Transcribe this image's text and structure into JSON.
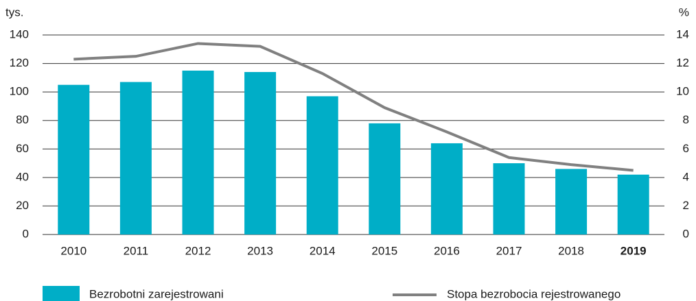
{
  "chart_data": {
    "type": "bar_line",
    "y_unit": "tys.",
    "y2_unit": "%",
    "categories": [
      "2010",
      "2011",
      "2012",
      "2013",
      "2014",
      "2015",
      "2016",
      "2017",
      "2018",
      "2019"
    ],
    "highlight_index": 9,
    "series": [
      {
        "name": "Bezrobotni zarejestrowani",
        "type": "bar",
        "color": "#00aec7",
        "values": [
          105,
          107,
          115,
          114,
          97,
          78,
          64,
          50,
          46,
          42
        ]
      },
      {
        "name": "Stopa bezrobocia rejestrowanego",
        "type": "line",
        "axis": "y2",
        "color": "#808080",
        "values": [
          12.3,
          12.5,
          13.4,
          13.2,
          11.3,
          8.9,
          7.2,
          5.4,
          4.9,
          4.5
        ]
      }
    ],
    "ylim": [
      0,
      140
    ],
    "yticks": [
      0,
      20,
      40,
      60,
      80,
      100,
      120,
      140
    ],
    "y2lim": [
      0,
      14
    ],
    "y2ticks": [
      0,
      2,
      4,
      6,
      8,
      10,
      12,
      14
    ],
    "grid": true
  }
}
